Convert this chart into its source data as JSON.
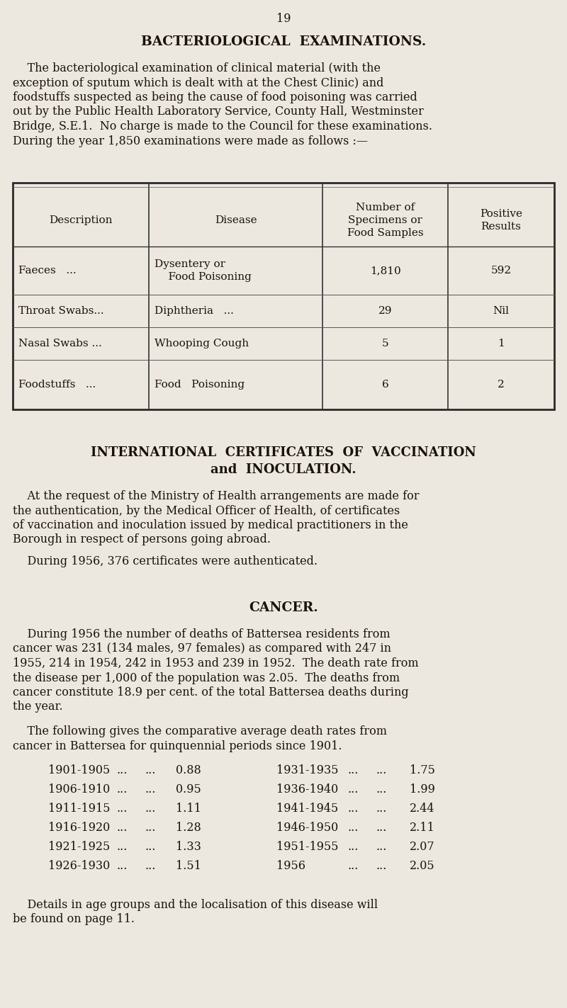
{
  "page_number": "19",
  "bg_color": "#ece8e0",
  "text_color": "#1a1208",
  "section1_title": "BACTERIOLOGICAL  EXAMINATIONS.",
  "table_headers": [
    "Description",
    "Disease",
    "Number of\nSpecimens or\nFood Samples",
    "Positive\nResults"
  ],
  "table_rows": [
    [
      "Faeces   ...",
      "Dysentery or\n    Food Poisoning",
      "1,810",
      "592"
    ],
    [
      "Throat Swabs...",
      "Diphtheria   ...",
      "29",
      "Nil"
    ],
    [
      "Nasal Swabs ...",
      "Whooping Cough",
      "5",
      "1"
    ],
    [
      "Foodstuffs   ...",
      "Food   Poisoning",
      "6",
      "2"
    ]
  ],
  "section2_title_line1": "INTERNATIONAL  CERTIFICATES  OF  VACCINATION",
  "section2_title_line2": "and  INOCULATION.",
  "section3_title": "CANCER.",
  "cancer_data_left": [
    [
      "1901-1905",
      "...",
      "...",
      "0.88"
    ],
    [
      "1906-1910",
      "...",
      "...",
      "0.95"
    ],
    [
      "1911-1915",
      "...",
      "...",
      "1.11"
    ],
    [
      "1916-1920",
      "...",
      "...",
      "1.28"
    ],
    [
      "1921-1925",
      "...",
      "...",
      "1.33"
    ],
    [
      "1926-1930",
      "...",
      "...",
      "1.51"
    ]
  ],
  "cancer_data_right": [
    [
      "1931-1935",
      "...",
      "...",
      "1.75"
    ],
    [
      "1936-1940",
      "...",
      "...",
      "1.99"
    ],
    [
      "1941-1945",
      "...",
      "...",
      "2.44"
    ],
    [
      "1946-1950",
      "...",
      "...",
      "2.11"
    ],
    [
      "1951-1955",
      "...",
      "...",
      "2.07"
    ],
    [
      "1956",
      "...",
      "...",
      "2.05"
    ]
  ],
  "para1_lines": [
    "    The bacteriological examination of clinical material (with the",
    "exception of sputum which is dealt with at the Chest Clinic) and",
    "foodstuffs suspected as being the cause of food poisoning was carried",
    "out by the Public Health Laboratory Service, County Hall, Westminster",
    "Bridge, S.E.1.  No charge is made to the Council for these examinations.",
    "During the year 1,850 examinations were made as follows :—"
  ],
  "para2_lines": [
    "    At the request of the Ministry of Health arrangements are made for",
    "the authentication, by the Medical Officer of Health, of certificates",
    "of vaccination and inoculation issued by medical practitioners in the",
    "Borough in respect of persons going abroad."
  ],
  "para2b": "    During 1956, 376 certificates were authenticated.",
  "para3_lines": [
    "    During 1956 the number of deaths of Battersea residents from",
    "cancer was 231 (134 males, 97 females) as compared with 247 in",
    "1955, 214 in 1954, 242 in 1953 and 239 in 1952.  The death rate from",
    "the disease per 1,000 of the population was 2.05.  The deaths from",
    "cancer constitute 18.9 per cent. of the total Battersea deaths during",
    "the year."
  ],
  "para3b_lines": [
    "    The following gives the comparative average death rates from",
    "cancer in Battersea for quinquennial periods since 1901."
  ],
  "footer_lines": [
    "    Details in age groups and the localisation of this disease will",
    "be found on page 11."
  ]
}
